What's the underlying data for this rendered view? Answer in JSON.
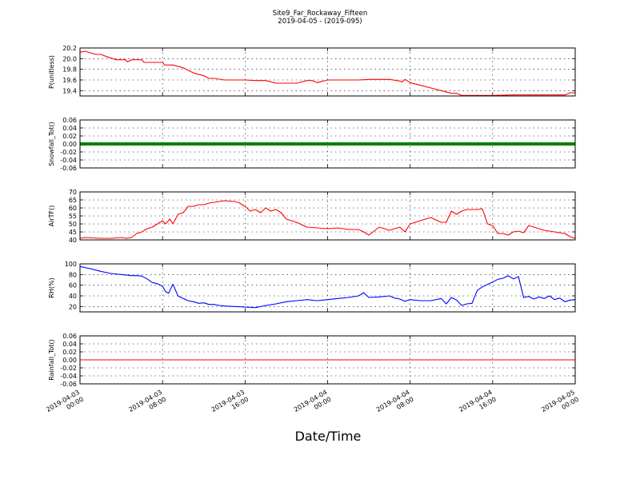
{
  "figure": {
    "title": "Site9_Far_Rockaway_Fifteen",
    "subtitle": "2019-04-05 - (2019-095)",
    "xlabel": "Date/Time",
    "x_ticks": [
      {
        "t": 0,
        "line1": "2019-04-03",
        "line2": "00:00"
      },
      {
        "t": 8,
        "line1": "2019-04-03",
        "line2": "08:00"
      },
      {
        "t": 16,
        "line1": "2019-04-03",
        "line2": "16:00"
      },
      {
        "t": 24,
        "line1": "2019-04-04",
        "line2": "00:00"
      },
      {
        "t": 32,
        "line1": "2019-04-04",
        "line2": "08:00"
      },
      {
        "t": 40,
        "line1": "2019-04-04",
        "line2": "16:00"
      },
      {
        "t": 48,
        "line1": "2019-04-05",
        "line2": "00:00"
      }
    ]
  },
  "chart_data": [
    {
      "type": "line",
      "ylabel": "P(unitless)",
      "ylim": [
        19.3,
        20.2
      ],
      "yticks": [
        "19.4",
        "19.6",
        "19.8",
        "20.0",
        "20.2"
      ],
      "grid": true,
      "color": "#ff0000",
      "x_hours": [
        0,
        0.5,
        1.5,
        2,
        2.7,
        3.5,
        4.4,
        4.6,
        5,
        6,
        6.2,
        7,
        8,
        8.2,
        9,
        10,
        10.5,
        11,
        12,
        12.5,
        13,
        14,
        15,
        16,
        17,
        18,
        19,
        19.5,
        21,
        22,
        22.5,
        23,
        24,
        24.5,
        25,
        26,
        27,
        28,
        29,
        30,
        31,
        31.2,
        31.5,
        32,
        33,
        34,
        35,
        36,
        36.5,
        37,
        38,
        40,
        42,
        44,
        46,
        47,
        47.5,
        48
      ],
      "values": [
        20.12,
        20.14,
        20.08,
        20.08,
        20.03,
        19.98,
        19.98,
        19.94,
        19.98,
        19.98,
        19.93,
        19.93,
        19.93,
        19.88,
        19.88,
        19.83,
        19.78,
        19.73,
        19.68,
        19.63,
        19.63,
        19.6,
        19.6,
        19.6,
        19.59,
        19.59,
        19.54,
        19.54,
        19.54,
        19.59,
        19.59,
        19.55,
        19.6,
        19.6,
        19.6,
        19.6,
        19.6,
        19.61,
        19.61,
        19.61,
        19.58,
        19.56,
        19.61,
        19.55,
        19.5,
        19.45,
        19.4,
        19.35,
        19.35,
        19.31,
        19.31,
        19.31,
        19.32,
        19.32,
        19.32,
        19.32,
        19.36,
        19.36
      ]
    },
    {
      "type": "scatter",
      "ylabel": "Snowfall_Tot()",
      "ylim": [
        -0.06,
        0.06
      ],
      "yticks": [
        "-0.06",
        "-0.04",
        "-0.02",
        "0.00",
        "0.02",
        "0.04",
        "0.06"
      ],
      "grid": true,
      "color": "#008000",
      "constant_value": 0.0
    },
    {
      "type": "line",
      "ylabel": "AirTF()",
      "ylim": [
        40,
        70
      ],
      "yticks": [
        "40",
        "45",
        "50",
        "55",
        "60",
        "65",
        "70"
      ],
      "grid": true,
      "color": "#ff0000",
      "x_hours": [
        0,
        0.5,
        2,
        3,
        4,
        4.5,
        5,
        5.5,
        6,
        6.5,
        7,
        7.5,
        8,
        8.3,
        8.7,
        9,
        9.5,
        10,
        10.5,
        11,
        11.5,
        12,
        12.5,
        13,
        14,
        15,
        15.5,
        16,
        16.5,
        17,
        17.5,
        18,
        18.5,
        19,
        19.5,
        20,
        21,
        22,
        23,
        24,
        25,
        26,
        27,
        27.5,
        28,
        29,
        30,
        31,
        31.5,
        32,
        33,
        34,
        35,
        35.5,
        36,
        36.5,
        37,
        37.5,
        38,
        38.5,
        39,
        39.5,
        40,
        40.5,
        41,
        41.5,
        42,
        42.5,
        43,
        43.5,
        44,
        45,
        46,
        47,
        47.5,
        48
      ],
      "values": [
        41,
        41.5,
        41,
        41,
        41.5,
        41,
        41.5,
        44,
        45,
        47,
        48,
        50,
        52,
        50,
        53,
        50,
        56,
        57,
        61,
        61,
        62,
        62,
        63,
        63.5,
        64.5,
        64,
        63,
        61,
        58,
        59,
        57,
        60,
        58,
        59,
        57,
        53,
        51,
        48,
        47.5,
        47,
        47.5,
        46.5,
        46.5,
        45,
        43,
        48,
        46,
        48,
        45,
        50,
        52,
        54,
        51,
        51,
        58,
        56,
        58,
        59,
        59,
        59,
        59.5,
        50,
        49,
        44,
        44,
        43,
        45,
        45.5,
        44.5,
        49,
        48,
        46,
        45,
        44,
        42,
        41
      ]
    },
    {
      "type": "line",
      "ylabel": "RH(%)",
      "ylim": [
        10,
        100
      ],
      "yticks": [
        "20",
        "40",
        "60",
        "80",
        "100"
      ],
      "grid": true,
      "color": "#0000ff",
      "x_hours": [
        0,
        1,
        2,
        3,
        4,
        5,
        5.5,
        6,
        6.5,
        7,
        7.5,
        8,
        8.3,
        8.6,
        9,
        9.5,
        10,
        10.5,
        11,
        11.5,
        12,
        12.5,
        13,
        13.5,
        14,
        15,
        16,
        17,
        18,
        19,
        20,
        21,
        22,
        23,
        24,
        25,
        26,
        27,
        27.5,
        28,
        29,
        30,
        30.5,
        31,
        31.5,
        32,
        33,
        34,
        35,
        35.5,
        36,
        36.5,
        37,
        37.5,
        38,
        38.5,
        39,
        40,
        40.5,
        41,
        41.5,
        42,
        42.5,
        43,
        43.5,
        44,
        44.5,
        45,
        45.5,
        46,
        46.5,
        47,
        47.5,
        48
      ],
      "values": [
        95,
        91,
        86,
        82,
        80,
        78,
        78,
        77,
        72,
        65,
        63,
        58,
        48,
        45,
        62,
        40,
        35,
        31,
        29,
        26,
        27,
        24,
        24,
        22,
        21,
        20,
        19,
        18,
        22,
        25,
        29,
        31,
        33,
        31,
        33,
        35,
        37,
        40,
        46,
        37,
        38,
        40,
        36,
        34,
        30,
        33,
        31,
        31,
        35,
        25,
        37,
        32,
        22,
        25,
        26,
        50,
        57,
        66,
        71,
        73,
        78,
        72,
        76,
        37,
        39,
        34,
        38,
        35,
        40,
        33,
        36,
        29,
        32,
        33
      ]
    },
    {
      "type": "line",
      "ylabel": "Rainfall_Tot()",
      "ylim": [
        -0.06,
        0.06
      ],
      "yticks": [
        "-0.06",
        "-0.04",
        "-0.02",
        "0.00",
        "0.02",
        "0.04",
        "0.06"
      ],
      "grid": true,
      "color": "#ff0000",
      "constant_value": 0.0
    }
  ]
}
